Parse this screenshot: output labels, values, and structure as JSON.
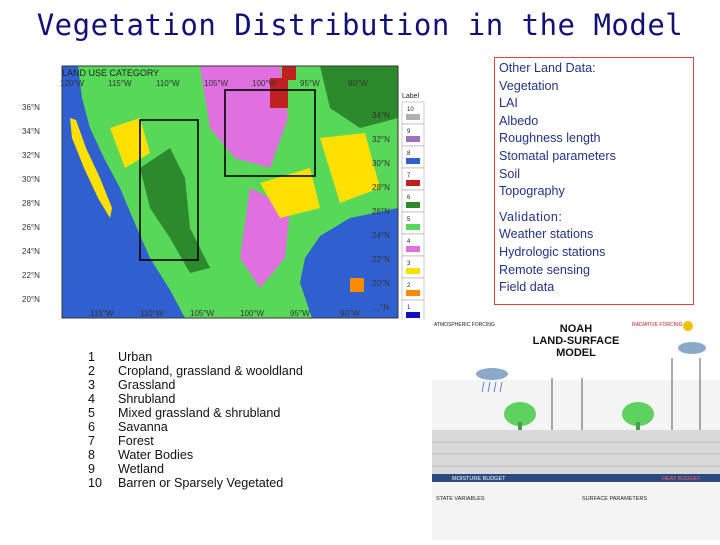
{
  "title": "Vegetation Distribution in the Model",
  "map": {
    "header": "LAND USE CATEGORY",
    "top_lon_labels": [
      "120°W",
      "115°W",
      "110°W",
      "105°W",
      "100°W",
      "95°W",
      "90°W"
    ],
    "bottom_lon_labels": [
      "115°W",
      "110°W",
      "105°W",
      "100°W",
      "95°W",
      "90°W"
    ],
    "left_lat_labels": [
      "36°N",
      "34°N",
      "32°N",
      "30°N",
      "28°N",
      "26°N",
      "24°N",
      "22°N",
      "20°N"
    ],
    "right_lat_labels": [
      "34°N",
      "32°N",
      "30°N",
      "28°N",
      "26°N",
      "24°N",
      "22°N",
      "20°N",
      "…°N"
    ],
    "colorbar_title": "Label",
    "colorbar_labels": [
      "10",
      "9",
      "8",
      "7",
      "6",
      "5",
      "4",
      "3",
      "2",
      "1"
    ],
    "colorbar_colors": [
      "#b0b0b0",
      "#a070c0",
      "#3060d0",
      "#c02020",
      "#2c8a2c",
      "#58d858",
      "#e070e0",
      "#ffe000",
      "#ff8a00",
      "#1010c0"
    ]
  },
  "info": {
    "lines": [
      "Other Land Data:",
      "Vegetation",
      "LAI",
      "Albedo",
      "Roughness length",
      "Stomatal parameters",
      "Soil",
      "Topography"
    ],
    "validation_head": "Validation:",
    "validation": [
      "Weather stations",
      "Hydrologic stations",
      "Remote sensing",
      "Field data"
    ]
  },
  "legend": [
    {
      "n": "1",
      "label": "Urban"
    },
    {
      "n": "2",
      "label": "Cropland, grassland & wooldland"
    },
    {
      "n": "3",
      "label": "Grassland"
    },
    {
      "n": "4",
      "label": "Shrubland"
    },
    {
      "n": "5",
      "label": "Mixed grassland & shrubland"
    },
    {
      "n": "6",
      "label": "Savanna"
    },
    {
      "n": "7",
      "label": "Forest"
    },
    {
      "n": "8",
      "label": "Water Bodies"
    },
    {
      "n": "9",
      "label": "Wetland"
    },
    {
      "n": "10",
      "label": "Barren or Sparsely Vegetated"
    }
  ],
  "noah": {
    "title_line1": "NOAH",
    "title_line2": "LAND-SURFACE",
    "title_line3": "MODEL",
    "left_head": "ATMOSPHERIC FORCING",
    "right_head": "RADIATIVE FORCING",
    "moisture_budget": "MOISTURE BUDGET",
    "heat_budget": "HEAT BUDGET",
    "bottom_left": "STATE VARIABLES",
    "bottom_right": "SURFACE PARAMETERS"
  }
}
